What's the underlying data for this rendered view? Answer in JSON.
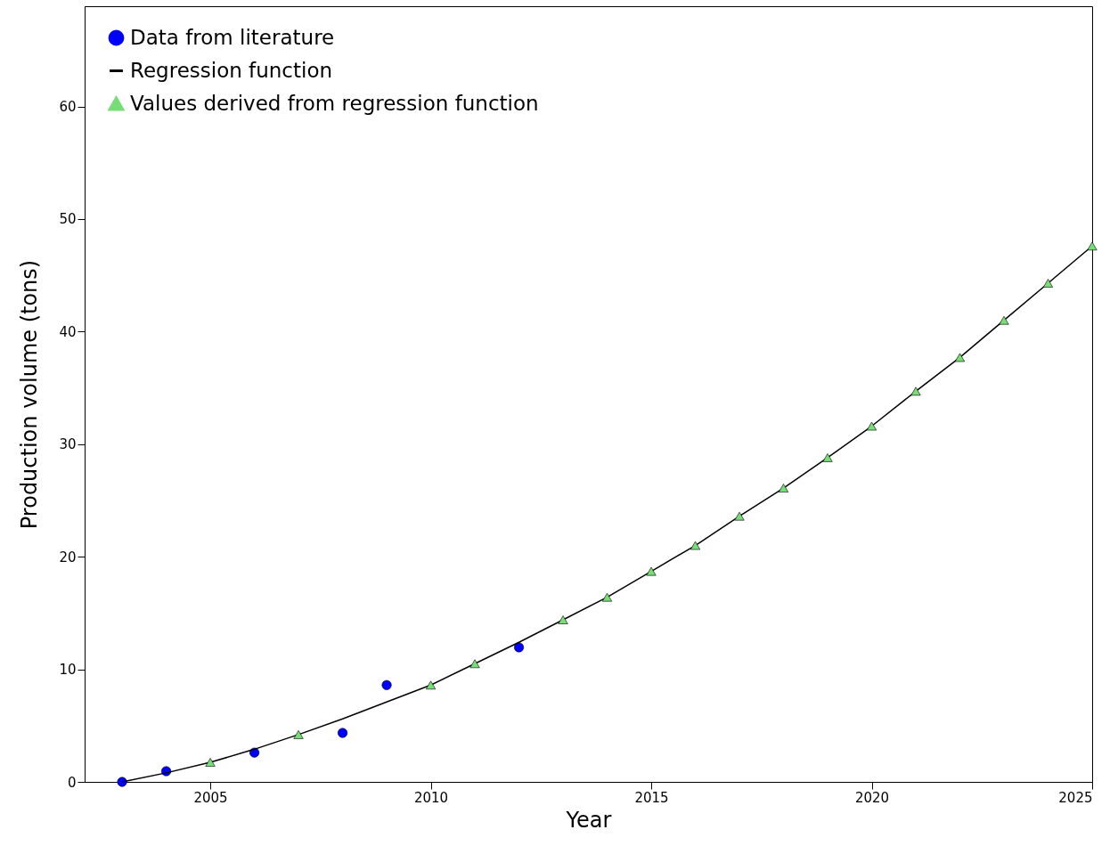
{
  "chart_data": {
    "type": "scatter",
    "xlabel": "Year",
    "ylabel": "Production volume (tons)",
    "xlim": [
      2002.15,
      2025
    ],
    "ylim": [
      0,
      68.9
    ],
    "xticks": [
      2005,
      2010,
      2015,
      2020,
      2025
    ],
    "yticks": [
      0,
      10,
      20,
      30,
      40,
      50,
      60
    ],
    "grid": false,
    "legend": "top left",
    "series": [
      {
        "name": "Data from literature",
        "marker": "circle",
        "color": "#0000ff",
        "x": [
          2003,
          2004,
          2006,
          2008,
          2009,
          2012
        ],
        "values": [
          0,
          0.95,
          2.6,
          4.35,
          8.6,
          11.95
        ]
      },
      {
        "name": "Regression function",
        "type": "line",
        "marker": "none",
        "color": "#000000",
        "x": [
          2003,
          2004,
          2005,
          2006,
          2007,
          2008,
          2009,
          2010,
          2011,
          2012,
          2013,
          2014,
          2015,
          2016,
          2017,
          2018,
          2019,
          2020,
          2021,
          2022,
          2023,
          2024,
          2025
        ],
        "values": [
          0,
          0.8,
          1.74,
          2.9,
          4.2,
          5.6,
          7.1,
          8.6,
          10.5,
          12.4,
          14.4,
          16.4,
          18.7,
          21.0,
          23.6,
          26.1,
          28.8,
          31.6,
          34.7,
          37.7,
          41.0,
          44.3,
          47.6
        ]
      },
      {
        "name": "Values derived from regression function",
        "marker": "triangle",
        "color": "#77dd77",
        "x": [
          2005,
          2007,
          2010,
          2011,
          2013,
          2014,
          2015,
          2016,
          2017,
          2018,
          2019,
          2020,
          2021,
          2022,
          2023,
          2024,
          2025
        ],
        "values": [
          1.74,
          4.2,
          8.6,
          10.5,
          14.4,
          16.4,
          18.7,
          21.0,
          23.6,
          26.1,
          28.8,
          31.6,
          34.7,
          37.7,
          41.0,
          44.3,
          47.6
        ]
      }
    ]
  }
}
